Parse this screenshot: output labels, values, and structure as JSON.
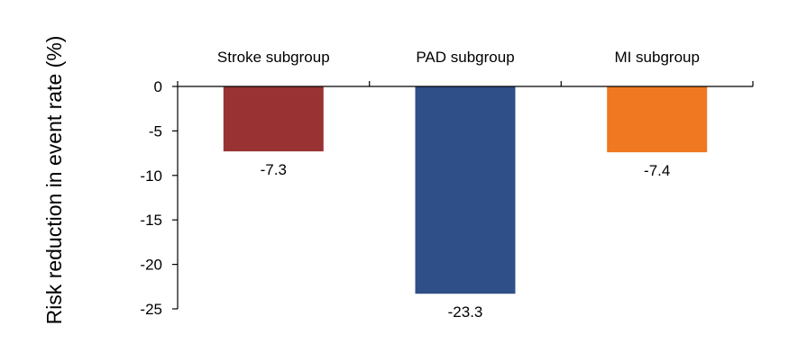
{
  "chart_data": {
    "type": "bar",
    "title": "",
    "xlabel": "",
    "ylabel": "Risk reduction in event rate (%)",
    "categories": [
      "Stroke subgroup",
      "PAD subgroup",
      "MI subgroup"
    ],
    "values": [
      -7.3,
      -23.3,
      -7.4
    ],
    "value_labels": [
      "-7.3",
      "-23.3",
      "-7.4"
    ],
    "colors": [
      "#993333",
      "#2e4f87",
      "#f07820"
    ],
    "ylim": [
      -25,
      0
    ],
    "yticks": [
      0,
      -5,
      -10,
      -15,
      -20,
      -25
    ],
    "ytick_labels": [
      "0",
      "-5",
      "-10",
      "-15",
      "-20",
      "-25"
    ],
    "category_axis_position": "top",
    "grid": false,
    "legend": "none"
  }
}
